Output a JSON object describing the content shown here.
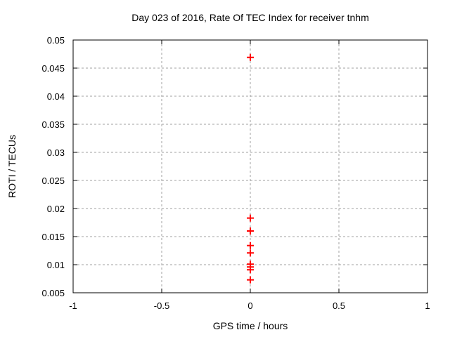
{
  "chart_data": {
    "type": "scatter",
    "title": "Day 023 of 2016, Rate Of TEC Index for receiver tnhm",
    "xlabel": "GPS time / hours",
    "ylabel": "ROTI / TECUs",
    "xlim": [
      -1,
      1
    ],
    "ylim": [
      0.005,
      0.05
    ],
    "xticks": [
      -1,
      -0.5,
      0,
      0.5,
      1
    ],
    "xtick_labels": [
      "-1",
      "-0.5",
      "0",
      "0.5",
      "1"
    ],
    "yticks": [
      0.005,
      0.01,
      0.015,
      0.02,
      0.025,
      0.03,
      0.035,
      0.04,
      0.045,
      0.05
    ],
    "ytick_labels": [
      "0.005",
      "0.01",
      "0.015",
      "0.02",
      "0.025",
      "0.03",
      "0.035",
      "0.04",
      "0.045",
      "0.05"
    ],
    "grid": true,
    "legend": "none",
    "series": [
      {
        "name": "ROTI",
        "marker": "plus",
        "color": "#ff0000",
        "points": [
          [
            0,
            0.0469
          ],
          [
            0,
            0.0183
          ],
          [
            0,
            0.016
          ],
          [
            0,
            0.0134
          ],
          [
            0,
            0.0121
          ],
          [
            0,
            0.0101
          ],
          [
            0,
            0.0096
          ],
          [
            0,
            0.0091
          ],
          [
            0,
            0.0073
          ]
        ]
      }
    ],
    "colors": {
      "marker": "#ff0000",
      "grid": "#a0a0a0",
      "axis": "#000000",
      "text": "#000000",
      "background": "#ffffff"
    }
  }
}
